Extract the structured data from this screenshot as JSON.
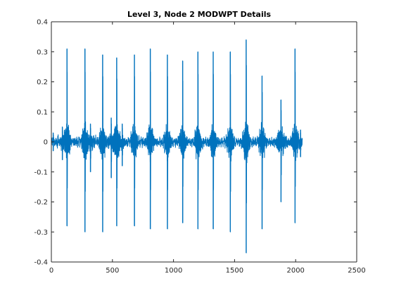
{
  "chart_data": {
    "type": "line",
    "title": "Level 3, Node 2 MODWPT Details",
    "xlabel": "",
    "ylabel": "",
    "xlim": [
      0,
      2500
    ],
    "ylim": [
      -0.4,
      0.4
    ],
    "x_ticks": [
      0,
      500,
      1000,
      1500,
      2000,
      2500
    ],
    "x_tick_labels": [
      "0",
      "500",
      "1000",
      "1500",
      "2000",
      "2500"
    ],
    "y_ticks": [
      0.4,
      0.3,
      0.2,
      0.1,
      0,
      -0.1,
      -0.2,
      -0.3,
      -0.4
    ],
    "y_tick_labels": [
      "0.4",
      "0.3",
      "0.2",
      "0.1",
      "0",
      "-0.1",
      "-0.2",
      "-0.3",
      "-0.4"
    ],
    "grid": false,
    "series": [
      {
        "color": "#0072bd",
        "sample_count": 2056,
        "noise_amplitude": 0.012,
        "bursts": [
          {
            "x": 15,
            "max": 0.03,
            "min": -0.03
          },
          {
            "x": 90,
            "max": 0.05,
            "min": -0.06
          },
          {
            "x": 128,
            "max": 0.31,
            "min": -0.28
          },
          {
            "x": 275,
            "max": 0.31,
            "min": -0.3
          },
          {
            "x": 320,
            "max": 0.06,
            "min": -0.1
          },
          {
            "x": 420,
            "max": 0.29,
            "min": -0.3
          },
          {
            "x": 490,
            "max": 0.08,
            "min": -0.12
          },
          {
            "x": 535,
            "max": 0.28,
            "min": -0.28
          },
          {
            "x": 580,
            "max": 0.06,
            "min": -0.08
          },
          {
            "x": 680,
            "max": 0.29,
            "min": -0.28
          },
          {
            "x": 810,
            "max": 0.31,
            "min": -0.29
          },
          {
            "x": 950,
            "max": 0.29,
            "min": -0.29
          },
          {
            "x": 1075,
            "max": 0.27,
            "min": -0.27
          },
          {
            "x": 1200,
            "max": 0.3,
            "min": -0.29
          },
          {
            "x": 1325,
            "max": 0.3,
            "min": -0.29
          },
          {
            "x": 1465,
            "max": 0.3,
            "min": -0.3
          },
          {
            "x": 1595,
            "max": 0.34,
            "min": -0.37
          },
          {
            "x": 1725,
            "max": 0.22,
            "min": -0.29
          },
          {
            "x": 1880,
            "max": 0.14,
            "min": -0.2
          },
          {
            "x": 1995,
            "max": 0.31,
            "min": -0.27
          },
          {
            "x": 2040,
            "max": 0.04,
            "min": -0.05
          }
        ]
      }
    ]
  }
}
